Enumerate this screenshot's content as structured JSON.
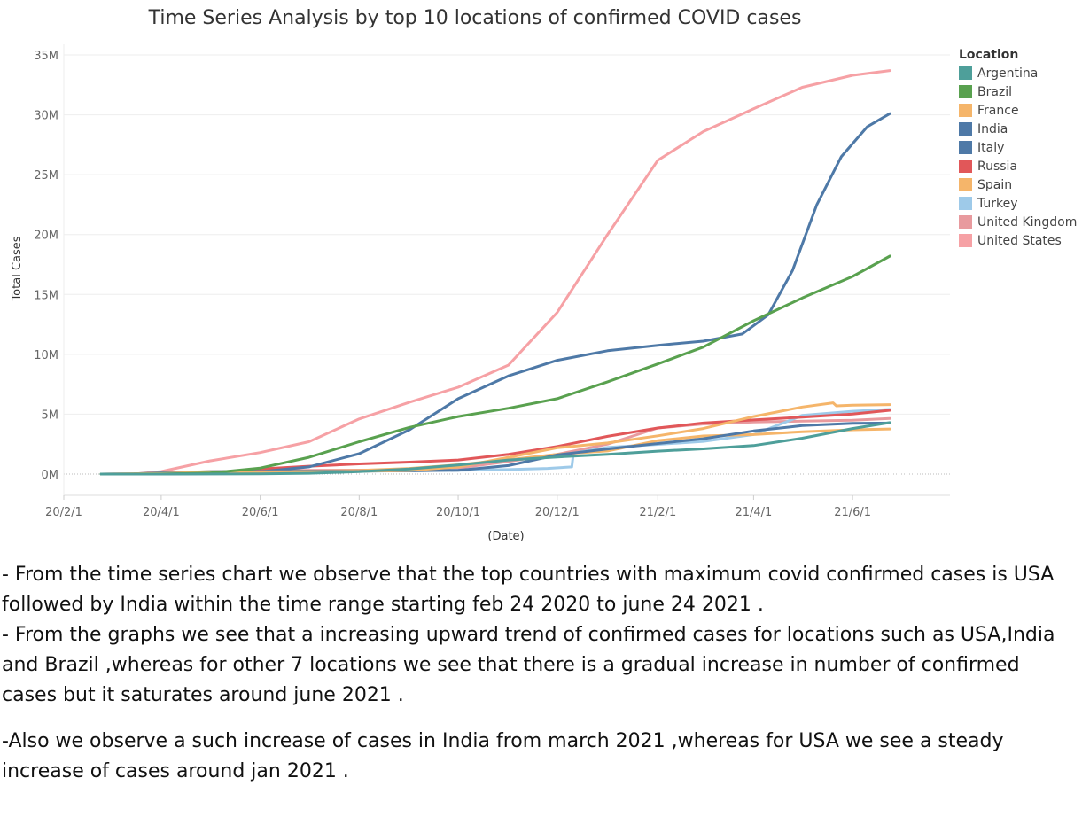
{
  "chart_data": {
    "type": "line",
    "title": "Time Series Analysis by top 10 locations of confirmed COVID cases",
    "xlabel": "(Date)",
    "ylabel": "Total Cases",
    "xlim": [
      "2020-02-01",
      "2021-07-31"
    ],
    "ylim": [
      0,
      35000000
    ],
    "y_ticks": [
      {
        "value": 0,
        "label": "0M"
      },
      {
        "value": 5000000,
        "label": "5M"
      },
      {
        "value": 10000000,
        "label": "10M"
      },
      {
        "value": 15000000,
        "label": "15M"
      },
      {
        "value": 20000000,
        "label": "20M"
      },
      {
        "value": 25000000,
        "label": "25M"
      },
      {
        "value": 30000000,
        "label": "30M"
      },
      {
        "value": 35000000,
        "label": "35M"
      }
    ],
    "x_ticks": [
      {
        "value": "2020-02-01",
        "label": "20/2/1"
      },
      {
        "value": "2020-04-01",
        "label": "20/4/1"
      },
      {
        "value": "2020-06-01",
        "label": "20/6/1"
      },
      {
        "value": "2020-08-01",
        "label": "20/8/1"
      },
      {
        "value": "2020-10-01",
        "label": "20/10/1"
      },
      {
        "value": "2020-12-01",
        "label": "20/12/1"
      },
      {
        "value": "2021-02-01",
        "label": "21/2/1"
      },
      {
        "value": "2021-04-01",
        "label": "21/4/1"
      },
      {
        "value": "2021-06-01",
        "label": "21/6/1"
      }
    ],
    "legend_title": "Location",
    "legend_position": "right",
    "grid": "horizontal",
    "series": [
      {
        "name": "Argentina",
        "color": "#4e9f9a",
        "points": [
          [
            "2020-02-24",
            0
          ],
          [
            "2020-04-01",
            1000
          ],
          [
            "2020-06-01",
            17000
          ],
          [
            "2020-07-01",
            65000
          ],
          [
            "2020-08-01",
            200000
          ],
          [
            "2020-09-01",
            430000
          ],
          [
            "2020-10-01",
            760000
          ],
          [
            "2020-11-01",
            1180000
          ],
          [
            "2020-12-01",
            1430000
          ],
          [
            "2021-01-01",
            1640000
          ],
          [
            "2021-02-01",
            1920000
          ],
          [
            "2021-03-01",
            2110000
          ],
          [
            "2021-04-01",
            2380000
          ],
          [
            "2021-05-01",
            3000000
          ],
          [
            "2021-06-01",
            3800000
          ],
          [
            "2021-06-24",
            4300000
          ]
        ]
      },
      {
        "name": "Brazil",
        "color": "#59a14f",
        "points": [
          [
            "2020-02-24",
            0
          ],
          [
            "2020-04-01",
            6000
          ],
          [
            "2020-05-01",
            90000
          ],
          [
            "2020-06-01",
            500000
          ],
          [
            "2020-07-01",
            1400000
          ],
          [
            "2020-08-01",
            2700000
          ],
          [
            "2020-09-01",
            3900000
          ],
          [
            "2020-10-01",
            4800000
          ],
          [
            "2020-11-01",
            5500000
          ],
          [
            "2020-12-01",
            6300000
          ],
          [
            "2021-01-01",
            7700000
          ],
          [
            "2021-02-01",
            9200000
          ],
          [
            "2021-03-01",
            10600000
          ],
          [
            "2021-04-01",
            12800000
          ],
          [
            "2021-05-01",
            14700000
          ],
          [
            "2021-06-01",
            16500000
          ],
          [
            "2021-06-24",
            18200000
          ]
        ]
      },
      {
        "name": "France",
        "color": "#f5b56a",
        "points": [
          [
            "2020-02-24",
            0
          ],
          [
            "2020-04-01",
            60000
          ],
          [
            "2020-05-01",
            170000
          ],
          [
            "2020-06-01",
            190000
          ],
          [
            "2020-07-01",
            200000
          ],
          [
            "2020-08-01",
            230000
          ],
          [
            "2020-09-01",
            300000
          ],
          [
            "2020-10-01",
            600000
          ],
          [
            "2020-11-01",
            1400000
          ],
          [
            "2020-12-01",
            2200000
          ],
          [
            "2021-01-01",
            2600000
          ],
          [
            "2021-02-01",
            3200000
          ],
          [
            "2021-03-01",
            3800000
          ],
          [
            "2021-04-01",
            4800000
          ],
          [
            "2021-05-01",
            5600000
          ],
          [
            "2021-05-20",
            5950000
          ],
          [
            "2021-05-22",
            5700000
          ],
          [
            "2021-06-01",
            5750000
          ],
          [
            "2021-06-24",
            5800000
          ]
        ]
      },
      {
        "name": "India",
        "color": "#4e79a7",
        "points": [
          [
            "2020-02-24",
            0
          ],
          [
            "2020-04-01",
            2000
          ],
          [
            "2020-05-01",
            35000
          ],
          [
            "2020-06-01",
            190000
          ],
          [
            "2020-07-01",
            600000
          ],
          [
            "2020-08-01",
            1700000
          ],
          [
            "2020-09-01",
            3700000
          ],
          [
            "2020-10-01",
            6300000
          ],
          [
            "2020-11-01",
            8200000
          ],
          [
            "2020-12-01",
            9500000
          ],
          [
            "2021-01-01",
            10300000
          ],
          [
            "2021-02-01",
            10750000
          ],
          [
            "2021-03-01",
            11100000
          ],
          [
            "2021-03-25",
            11700000
          ],
          [
            "2021-04-10",
            13300000
          ],
          [
            "2021-04-25",
            17000000
          ],
          [
            "2021-05-10",
            22500000
          ],
          [
            "2021-05-25",
            26500000
          ],
          [
            "2021-06-10",
            29000000
          ],
          [
            "2021-06-24",
            30100000
          ]
        ]
      },
      {
        "name": "Italy",
        "color": "#4e79a7",
        "points": [
          [
            "2020-02-24",
            200
          ],
          [
            "2020-03-15",
            25000
          ],
          [
            "2020-04-01",
            110000
          ],
          [
            "2020-05-01",
            205000
          ],
          [
            "2020-06-01",
            233000
          ],
          [
            "2020-08-01",
            248000
          ],
          [
            "2020-09-01",
            270000
          ],
          [
            "2020-10-01",
            320000
          ],
          [
            "2020-11-01",
            710000
          ],
          [
            "2020-12-01",
            1600000
          ],
          [
            "2021-01-01",
            2100000
          ],
          [
            "2021-02-01",
            2550000
          ],
          [
            "2021-03-01",
            2950000
          ],
          [
            "2021-04-01",
            3600000
          ],
          [
            "2021-05-01",
            4050000
          ],
          [
            "2021-06-01",
            4230000
          ],
          [
            "2021-06-24",
            4260000
          ]
        ]
      },
      {
        "name": "Russia",
        "color": "#e15759",
        "points": [
          [
            "2020-02-24",
            0
          ],
          [
            "2020-04-01",
            3000
          ],
          [
            "2020-05-01",
            110000
          ],
          [
            "2020-06-01",
            420000
          ],
          [
            "2020-07-01",
            660000
          ],
          [
            "2020-08-01",
            850000
          ],
          [
            "2020-09-01",
            1000000
          ],
          [
            "2020-10-01",
            1180000
          ],
          [
            "2020-11-01",
            1650000
          ],
          [
            "2020-12-01",
            2300000
          ],
          [
            "2021-01-01",
            3150000
          ],
          [
            "2021-02-01",
            3850000
          ],
          [
            "2021-03-01",
            4260000
          ],
          [
            "2021-04-01",
            4520000
          ],
          [
            "2021-05-01",
            4760000
          ],
          [
            "2021-06-01",
            5020000
          ],
          [
            "2021-06-24",
            5330000
          ]
        ]
      },
      {
        "name": "Spain",
        "color": "#f5b56a",
        "points": [
          [
            "2020-02-24",
            0
          ],
          [
            "2020-03-15",
            7000
          ],
          [
            "2020-04-01",
            100000
          ],
          [
            "2020-05-01",
            215000
          ],
          [
            "2020-06-01",
            240000
          ],
          [
            "2020-07-01",
            250000
          ],
          [
            "2020-08-01",
            300000
          ],
          [
            "2020-09-01",
            470000
          ],
          [
            "2020-10-01",
            780000
          ],
          [
            "2020-11-01",
            1200000
          ],
          [
            "2020-12-01",
            1650000
          ],
          [
            "2021-01-01",
            1930000
          ],
          [
            "2021-02-01",
            2800000
          ],
          [
            "2021-03-01",
            3180000
          ],
          [
            "2021-04-01",
            3300000
          ],
          [
            "2021-05-01",
            3540000
          ],
          [
            "2021-06-01",
            3700000
          ],
          [
            "2021-06-24",
            3770000
          ]
        ]
      },
      {
        "name": "Turkey",
        "color": "#9ecae9",
        "points": [
          [
            "2020-02-24",
            0
          ],
          [
            "2020-03-20",
            300
          ],
          [
            "2020-04-01",
            15000
          ],
          [
            "2020-05-01",
            120000
          ],
          [
            "2020-06-01",
            165000
          ],
          [
            "2020-07-01",
            200000
          ],
          [
            "2020-08-01",
            230000
          ],
          [
            "2020-09-01",
            271000
          ],
          [
            "2020-10-01",
            320000
          ],
          [
            "2020-11-01",
            380000
          ],
          [
            "2020-11-25",
            470000
          ],
          [
            "2020-12-10",
            600000
          ],
          [
            "2020-12-11",
            1750000
          ],
          [
            "2021-01-01",
            2230000
          ],
          [
            "2021-02-01",
            2480000
          ],
          [
            "2021-03-01",
            2730000
          ],
          [
            "2021-04-01",
            3300000
          ],
          [
            "2021-04-20",
            4300000
          ],
          [
            "2021-05-01",
            4900000
          ],
          [
            "2021-06-01",
            5250000
          ],
          [
            "2021-06-24",
            5400000
          ]
        ]
      },
      {
        "name": "United Kingdom",
        "color": "#e89a9e",
        "points": [
          [
            "2020-02-24",
            10
          ],
          [
            "2020-04-01",
            30000
          ],
          [
            "2020-05-01",
            180000
          ],
          [
            "2020-06-01",
            280000
          ],
          [
            "2020-07-01",
            310000
          ],
          [
            "2020-08-01",
            330000
          ],
          [
            "2020-09-01",
            350000
          ],
          [
            "2020-10-01",
            500000
          ],
          [
            "2020-11-01",
            1050000
          ],
          [
            "2020-12-01",
            1650000
          ],
          [
            "2021-01-01",
            2500000
          ],
          [
            "2021-02-01",
            3850000
          ],
          [
            "2021-03-01",
            4180000
          ],
          [
            "2021-04-01",
            4350000
          ],
          [
            "2021-05-01",
            4420000
          ],
          [
            "2021-06-01",
            4490000
          ],
          [
            "2021-06-24",
            4650000
          ]
        ]
      },
      {
        "name": "United States",
        "color": "#f6a1a5",
        "points": [
          [
            "2020-02-24",
            15
          ],
          [
            "2020-03-15",
            3500
          ],
          [
            "2020-04-01",
            215000
          ],
          [
            "2020-05-01",
            1100000
          ],
          [
            "2020-06-01",
            1800000
          ],
          [
            "2020-07-01",
            2700000
          ],
          [
            "2020-08-01",
            4600000
          ],
          [
            "2020-09-01",
            6000000
          ],
          [
            "2020-10-01",
            7250000
          ],
          [
            "2020-11-01",
            9100000
          ],
          [
            "2020-12-01",
            13500000
          ],
          [
            "2021-01-01",
            20000000
          ],
          [
            "2021-02-01",
            26200000
          ],
          [
            "2021-03-01",
            28600000
          ],
          [
            "2021-04-01",
            30500000
          ],
          [
            "2021-05-01",
            32300000
          ],
          [
            "2021-06-01",
            33300000
          ],
          [
            "2021-06-24",
            33700000
          ]
        ]
      }
    ]
  },
  "notes": [
    "- From the time series chart we observe that the top countries  with maximum covid confirmed cases is USA followed by India within the time range starting feb 24 2020  to june 24 2021 .",
    "- From the graphs we see that a increasing  upward trend of confirmed cases for locations such as USA,India and Brazil ,whereas for  other 7 locations we see that there is a gradual increase in number of confirmed cases but it saturates around june 2021 .",
    "-Also we observe a such increase of cases in India from march 2021 ,whereas for USA we see a steady increase of cases  around jan 2021 ."
  ]
}
